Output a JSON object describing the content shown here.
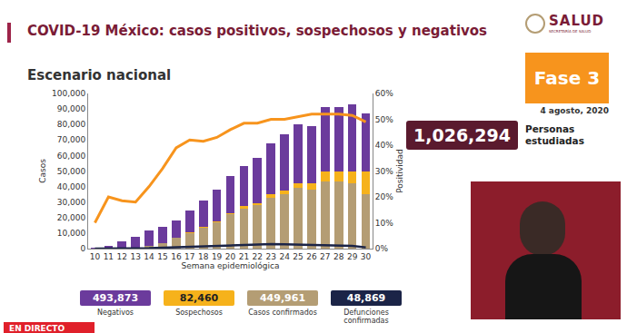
{
  "page": {
    "title": "COVID-19 México: casos positivos, sospechosos y negativos",
    "subtitle": "Escenario nacional",
    "logo": "SALUD",
    "logo_sub": "SECRETARÍA DE SALUD",
    "phase": "Fase 3",
    "date": "4 agosto, 2020",
    "studied_value": "1,026,294",
    "studied_label": "Personas estudiadas",
    "live": "EN DIRECTO"
  },
  "chart_data": {
    "type": "bar",
    "stacked": true,
    "grid": false,
    "x_label": "Semana epidemiológica",
    "y_label": "Casos",
    "y2_label": "Positividad",
    "categories": [
      "10",
      "11",
      "12",
      "13",
      "14",
      "15",
      "16",
      "17",
      "18",
      "19",
      "20",
      "21",
      "22",
      "23",
      "24",
      "25",
      "26",
      "27",
      "28",
      "29",
      "30"
    ],
    "ylim": [
      0,
      100000
    ],
    "yticks": [
      0,
      {
        "value": 10000,
        "label": "10,000"
      },
      {
        "value": 20000,
        "label": "20,000"
      },
      {
        "value": 30000,
        "label": "30,000"
      },
      {
        "value": 40000,
        "label": "40,000"
      },
      {
        "value": 50000,
        "label": "50,000"
      },
      {
        "value": 60000,
        "label": "60,000"
      },
      {
        "value": 70000,
        "label": "70,000"
      },
      {
        "value": 80000,
        "label": "80,000"
      },
      {
        "value": 90000,
        "label": "90,000"
      },
      {
        "value": 100000,
        "label": "100,000"
      }
    ],
    "y2lim": [
      0,
      60
    ],
    "y2ticks": [
      {
        "value": 0,
        "label": "0%"
      },
      {
        "value": 10,
        "label": "10%"
      },
      {
        "value": 20,
        "label": "20%"
      },
      {
        "value": 30,
        "label": "30%"
      },
      {
        "value": 40,
        "label": "40%"
      },
      {
        "value": 50,
        "label": "50%"
      },
      {
        "value": 60,
        "label": "60%"
      }
    ],
    "series": [
      {
        "name": "Negativos",
        "total": "493,873",
        "type": "bar",
        "color": "#6b3b9c",
        "values": [
          300,
          1800,
          4500,
          7000,
          9500,
          10500,
          11000,
          14000,
          17000,
          20000,
          24000,
          26000,
          29000,
          33000,
          36000,
          38000,
          37000,
          41000,
          41000,
          43000,
          37000
        ]
      },
      {
        "name": "Sospechosos",
        "total": "82,460",
        "type": "bar",
        "color": "#f6b21b",
        "values": [
          0,
          0,
          0,
          0,
          0,
          0,
          200,
          300,
          500,
          800,
          1000,
          1200,
          1500,
          2000,
          2500,
          3000,
          4000,
          7000,
          7000,
          8000,
          15000
        ]
      },
      {
        "name": "Casos confirmados",
        "total": "449,961",
        "type": "bar",
        "color": "#b49d74",
        "values": [
          0,
          50,
          300,
          800,
          2000,
          3500,
          7000,
          10000,
          13500,
          17000,
          22000,
          26000,
          28000,
          33000,
          35000,
          39000,
          38000,
          43000,
          43000,
          42000,
          35000
        ]
      },
      {
        "name": "Defunciones confirmadas",
        "total": "48,869",
        "type": "line",
        "color": "#1b2447",
        "values": [
          0,
          0,
          20,
          100,
          300,
          600,
          900,
          1200,
          1500,
          1700,
          2000,
          2200,
          2400,
          2900,
          2800,
          2600,
          2500,
          2300,
          2200,
          1800,
          800
        ]
      },
      {
        "type": "line",
        "axis": "y2",
        "color": "#f7941d",
        "values": [
          10,
          20,
          18.5,
          18,
          24,
          31,
          39,
          42,
          41.5,
          43,
          46,
          48.5,
          48.5,
          50,
          50,
          51,
          52,
          52,
          52,
          51.5,
          49
        ]
      }
    ]
  }
}
